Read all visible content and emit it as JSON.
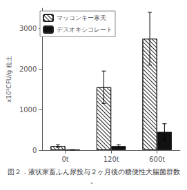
{
  "chart_data": {
    "type": "bar",
    "caption": "図２．液状家畜ふん尿投与２ヶ月後の糖便性大腸菌群数。",
    "ylabel": "x10³CFU/g 粒土",
    "categories": [
      "0t",
      "120t",
      "600t"
    ],
    "series": [
      {
        "name": "マッコンキー寒天",
        "color": "white",
        "values": [
          100,
          1550,
          2750
        ],
        "errors": [
          30,
          400,
          650
        ]
      },
      {
        "name": "デスオキシコレート",
        "color": "#111111",
        "values": [
          5,
          100,
          450
        ],
        "errors": [
          2,
          30,
          200
        ]
      }
    ],
    "ylim": [
      0,
      3500
    ],
    "yticks": [
      0,
      1000,
      2000,
      3000
    ],
    "grid": false,
    "legend": "upper left"
  }
}
